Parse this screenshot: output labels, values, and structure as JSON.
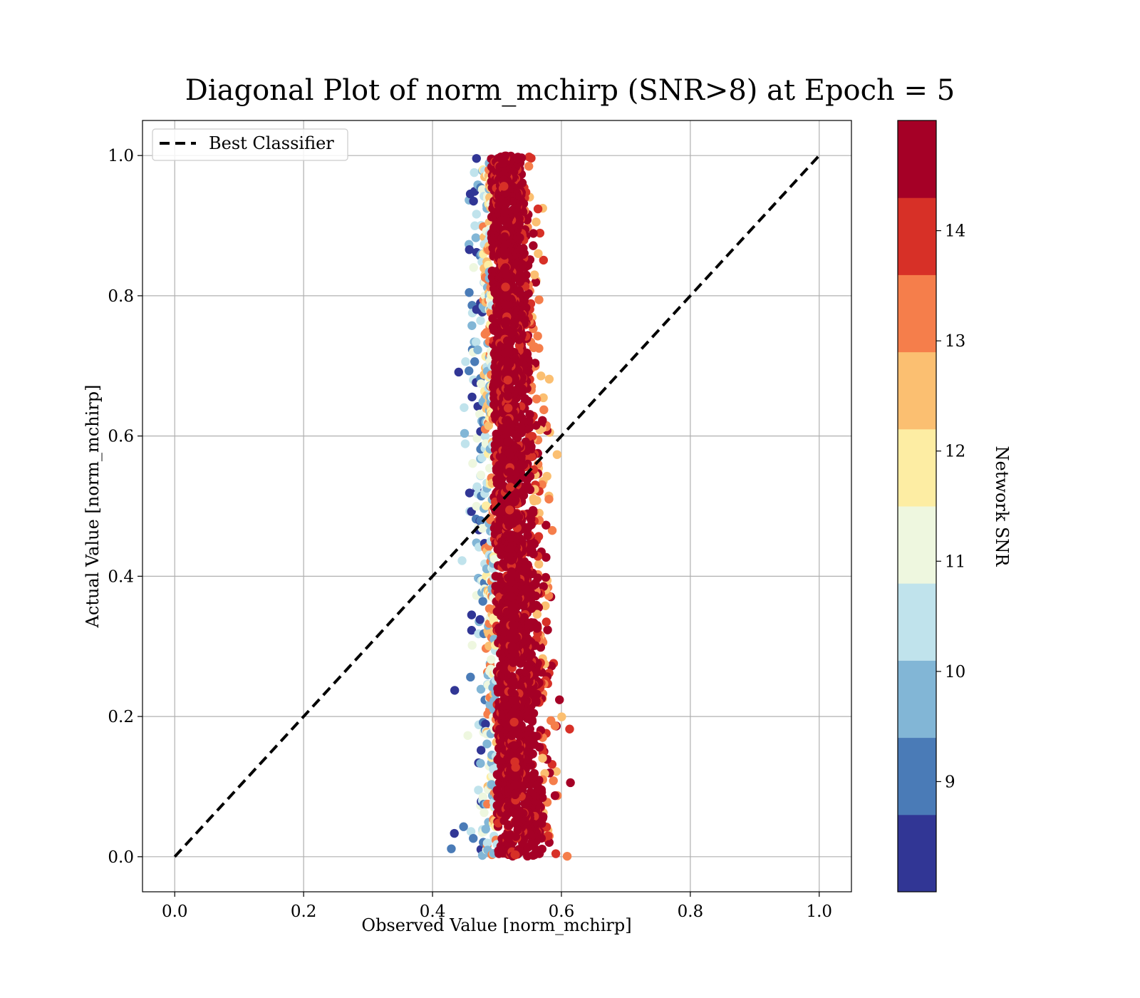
{
  "chart_data": {
    "type": "scatter",
    "title": "Diagonal Plot of norm_mchirp (SNR>8) at Epoch = 5",
    "xlabel": "Observed Value [norm_mchirp]",
    "ylabel": "Actual Value [norm_mchirp]",
    "xlim": [
      -0.05,
      1.05
    ],
    "ylim": [
      -0.05,
      1.05
    ],
    "x_ticks": [
      "0.0",
      "0.2",
      "0.4",
      "0.6",
      "0.8",
      "1.0"
    ],
    "y_ticks": [
      "0.0",
      "0.2",
      "0.4",
      "0.6",
      "0.8",
      "1.0"
    ],
    "grid": true,
    "legend_position": "top-left",
    "reference_line": {
      "name": "Best Classifier",
      "x": [
        0.0,
        1.0
      ],
      "y": [
        0.0,
        1.0
      ],
      "style": "dashed",
      "color": "#000000"
    },
    "scatter_series": {
      "x_center_at_y0": 0.53,
      "x_center_at_y1": 0.51,
      "x_spread": 0.02,
      "y_range": [
        0.0,
        1.0
      ],
      "color_by": "Network SNR",
      "dominant_snr": 14.5
    },
    "colorbar": {
      "label": "Network SNR",
      "range": [
        8,
        15
      ],
      "ticks": [
        "9",
        "10",
        "11",
        "12",
        "13",
        "14"
      ],
      "bins": [
        {
          "from": 8.0,
          "to": 8.7,
          "color": "#313695"
        },
        {
          "from": 8.7,
          "to": 9.4,
          "color": "#4a7bb7"
        },
        {
          "from": 9.4,
          "to": 10.1,
          "color": "#82b6d6"
        },
        {
          "from": 10.1,
          "to": 10.8,
          "color": "#c0e3ec"
        },
        {
          "from": 10.8,
          "to": 11.5,
          "color": "#eef7df"
        },
        {
          "from": 11.5,
          "to": 12.2,
          "color": "#fdeda3"
        },
        {
          "from": 12.2,
          "to": 12.9,
          "color": "#fbbf71"
        },
        {
          "from": 12.9,
          "to": 13.6,
          "color": "#f57e4b"
        },
        {
          "from": 13.6,
          "to": 14.3,
          "color": "#d73027"
        },
        {
          "from": 14.3,
          "to": 15.0,
          "color": "#a50026"
        }
      ]
    }
  }
}
